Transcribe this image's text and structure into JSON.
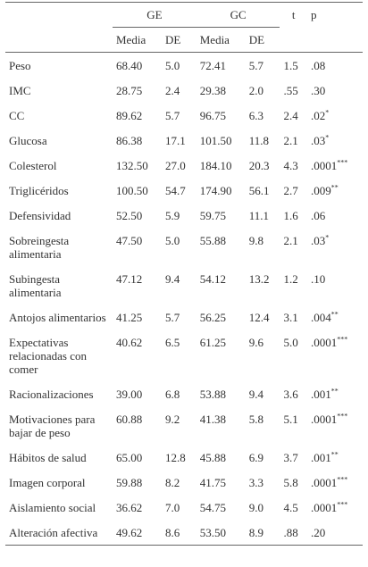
{
  "table": {
    "header": {
      "group1": "GE",
      "group2": "GC",
      "t": "t",
      "p": "p",
      "sub": [
        "Media",
        "DE",
        "Media",
        "DE"
      ]
    },
    "rows": [
      [
        "Peso",
        "68.40",
        "5.0",
        "72.41",
        "5.7",
        "1.5",
        ".08"
      ],
      [
        "IMC",
        "28.75",
        "2.4",
        "29.38",
        "2.0",
        ".55",
        ".30"
      ],
      [
        "CC",
        "89.62",
        "5.7",
        "96.75",
        "6.3",
        "2.4",
        {
          "value": ".02",
          "sup": "*"
        }
      ],
      [
        "Glucosa",
        "86.38",
        "17.1",
        "101.50",
        "11.8",
        "2.1",
        {
          "value": ".03",
          "sup": "*"
        }
      ],
      [
        "Colesterol",
        "132.50",
        "27.0",
        "184.10",
        "20.3",
        "4.3",
        {
          "value": ".0001",
          "sup": "***"
        }
      ],
      [
        "Triglicéridos",
        "100.50",
        "54.7",
        "174.90",
        "56.1",
        "2.7",
        {
          "value": ".009",
          "sup": "**"
        }
      ],
      [
        "Defensividad",
        "52.50",
        "5.9",
        "59.75",
        "11.1",
        "1.6",
        ".06"
      ],
      [
        "Sobreingesta alimentaria",
        "47.50",
        "5.0",
        "55.88",
        "9.8",
        "2.1",
        {
          "value": ".03",
          "sup": "*"
        }
      ],
      [
        "Subingesta alimentaria",
        "47.12",
        "9.4",
        "54.12",
        "13.2",
        "1.2",
        ".10"
      ],
      [
        "Antojos alimentarios",
        "41.25",
        "5.7",
        "56.25",
        "12.4",
        "3.1",
        {
          "value": ".004",
          "sup": "**"
        }
      ],
      [
        "Expectativas relacionadas con comer",
        "40.62",
        "6.5",
        "61.25",
        "9.6",
        "5.0",
        {
          "value": ".0001",
          "sup": "***"
        }
      ],
      [
        "Racionalizaciones",
        "39.00",
        "6.8",
        "53.88",
        "9.4",
        "3.6",
        {
          "value": ".001",
          "sup": "**"
        }
      ],
      [
        "Motivaciones para bajar de peso",
        "60.88",
        "9.2",
        "41.38",
        "5.8",
        "5.1",
        {
          "value": ".0001",
          "sup": "***"
        }
      ],
      [
        "Hábitos de salud",
        "65.00",
        "12.8",
        "45.88",
        "6.9",
        "3.7",
        {
          "value": ".001",
          "sup": "**"
        }
      ],
      [
        "Imagen corporal",
        "59.88",
        "8.2",
        "41.75",
        "3.3",
        "5.8",
        {
          "value": ".0001",
          "sup": "***"
        }
      ],
      [
        "Aislamiento social",
        "36.62",
        "7.0",
        "54.75",
        "9.0",
        "4.5",
        {
          "value": ".0001",
          "sup": "***"
        }
      ],
      [
        "Alteración afectiva",
        "49.62",
        "8.6",
        "53.50",
        "8.9",
        ".88",
        ".20"
      ]
    ]
  }
}
